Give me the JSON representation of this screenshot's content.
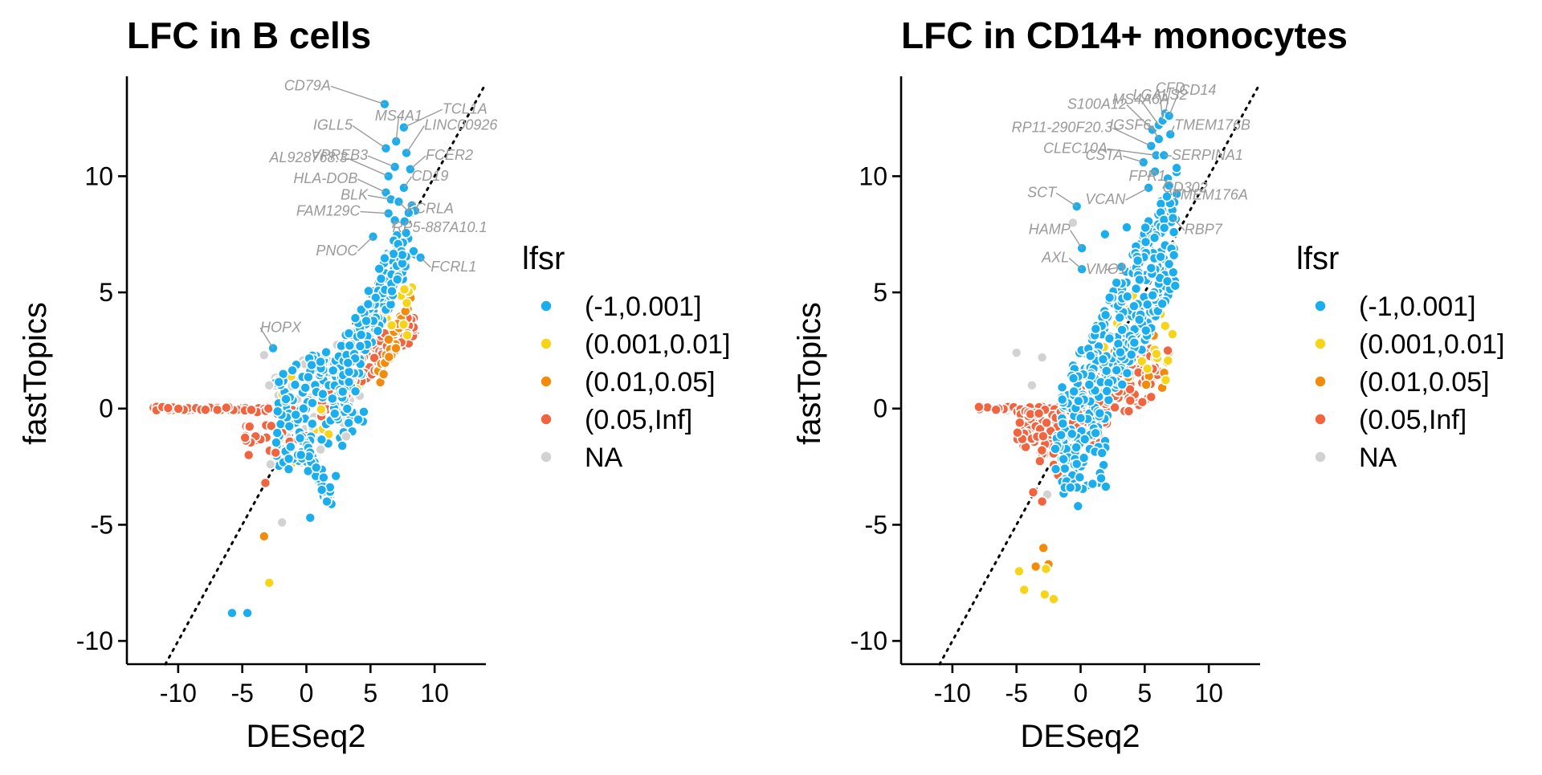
{
  "colors": {
    "(-1,0.001]": "#1aaeee",
    "(0.001,0.01]": "#f8d418",
    "(0.01,0.05]": "#f28b0c",
    "(0.05,Inf]": "#f06440",
    "NA": "#d2d2d2"
  },
  "legend": {
    "title": "lfsr",
    "entries": [
      "(-1,0.001]",
      "(0.001,0.01]",
      "(0.01,0.05]",
      "(0.05,Inf]",
      "NA"
    ]
  },
  "chart_data": [
    {
      "type": "scatter",
      "title": "LFC in B cells",
      "xlabel": "DESeq2",
      "ylabel": "fastTopics",
      "xlim": [
        -14,
        14
      ],
      "ylim": [
        -11,
        14.3
      ],
      "xticks": [
        -10,
        -5,
        0,
        5,
        10
      ],
      "xtick_labels": [
        "-10",
        "-5",
        "0",
        "5",
        "10"
      ],
      "yticks": [
        -10,
        -5,
        0,
        5,
        10
      ],
      "ytick_labels": [
        "-10",
        "-5",
        "0",
        "5",
        "10"
      ],
      "reference_line": "y = x",
      "grid": false,
      "legend_position": "right",
      "labeled_points": [
        {
          "gene": "CD79A",
          "x": 6.1,
          "y": 13.1,
          "lfsr": "(-1,0.001]"
        },
        {
          "gene": "TCL1A",
          "x": 7.6,
          "y": 12.1,
          "lfsr": "(-1,0.001]"
        },
        {
          "gene": "IGLL5",
          "x": 6.2,
          "y": 11.2,
          "lfsr": "(-1,0.001]"
        },
        {
          "gene": "MS4A1",
          "x": 7.0,
          "y": 11.5,
          "lfsr": "(-1,0.001]"
        },
        {
          "gene": "LINC00926",
          "x": 7.8,
          "y": 11.0,
          "lfsr": "(-1,0.001]"
        },
        {
          "gene": "AL928768.3",
          "x": 6.4,
          "y": 10.0,
          "lfsr": "(-1,0.001]"
        },
        {
          "gene": "VPREB3",
          "x": 6.9,
          "y": 10.4,
          "lfsr": "(-1,0.001]"
        },
        {
          "gene": "FCER2",
          "x": 8.1,
          "y": 10.3,
          "lfsr": "(-1,0.001]"
        },
        {
          "gene": "HLA-DOB",
          "x": 6.2,
          "y": 9.3,
          "lfsr": "(-1,0.001]"
        },
        {
          "gene": "BLK",
          "x": 6.6,
          "y": 9.0,
          "lfsr": "(-1,0.001]"
        },
        {
          "gene": "CD19",
          "x": 7.6,
          "y": 9.5,
          "lfsr": "(-1,0.001]"
        },
        {
          "gene": "FCRLA",
          "x": 7.2,
          "y": 8.9,
          "lfsr": "(-1,0.001]"
        },
        {
          "gene": "FAM129C",
          "x": 6.4,
          "y": 8.4,
          "lfsr": "(-1,0.001]"
        },
        {
          "gene": "RP5-887A10.1",
          "x": 6.9,
          "y": 8.1,
          "lfsr": "(-1,0.001]"
        },
        {
          "gene": "PNOC",
          "x": 5.2,
          "y": 7.4,
          "lfsr": "(-1,0.001]"
        },
        {
          "gene": "FCRL1",
          "x": 8.9,
          "y": 6.5,
          "lfsr": "(-1,0.001]"
        },
        {
          "gene": "HOPX",
          "x": -2.6,
          "y": 2.6,
          "lfsr": "(-1,0.001]"
        }
      ],
      "points": [
        {
          "x": -5.8,
          "y": -8.8,
          "lfsr": "(-1,0.001]"
        },
        {
          "x": -4.6,
          "y": -8.8,
          "lfsr": "(-1,0.001]"
        },
        {
          "x": -3.3,
          "y": -5.5,
          "lfsr": "(0.01,0.05]"
        },
        {
          "x": -2.9,
          "y": -7.5,
          "lfsr": "(0.001,0.01]"
        },
        {
          "x": -1.9,
          "y": -4.9,
          "lfsr": "NA"
        },
        {
          "x": 0.3,
          "y": -4.7,
          "lfsr": "(-1,0.001]"
        },
        {
          "x": -3.3,
          "y": 2.3,
          "lfsr": "NA"
        },
        {
          "x": -3.2,
          "y": -3.2,
          "lfsr": "(0.05,Inf]"
        },
        {
          "x": -2.4,
          "y": -1.9,
          "lfsr": "(0.05,Inf]"
        },
        {
          "x": -2.8,
          "y": -2.4,
          "lfsr": "NA"
        },
        {
          "x": -2.9,
          "y": 1.0,
          "lfsr": "NA"
        },
        {
          "x": -4.5,
          "y": -2.0,
          "lfsr": "(0.05,Inf]"
        },
        {
          "x": 1.6,
          "y": -4.0,
          "lfsr": "(-1,0.001]"
        },
        {
          "x": 1.2,
          "y": -3.5,
          "lfsr": "(-1,0.001]"
        },
        {
          "x": 2.3,
          "y": -2.9,
          "lfsr": "(-1,0.001]"
        },
        {
          "x": 2.8,
          "y": -1.6,
          "lfsr": "(-1,0.001]"
        },
        {
          "x": 3.1,
          "y": -1.2,
          "lfsr": "NA"
        }
      ]
    },
    {
      "type": "scatter",
      "title": "LFC in CD14+ monocytes",
      "xlabel": "DESeq2",
      "ylabel": "fastTopics",
      "xlim": [
        -14,
        14
      ],
      "ylim": [
        -11,
        14.3
      ],
      "xticks": [
        -10,
        -5,
        0,
        5,
        10
      ],
      "xtick_labels": [
        "-10",
        "-5",
        "0",
        "5",
        "10"
      ],
      "yticks": [
        -10,
        -5,
        0,
        5,
        10
      ],
      "ytick_labels": [
        "-10",
        "-5",
        "0",
        "5",
        "10"
      ],
      "reference_line": "y = x",
      "grid": false,
      "legend_position": "right",
      "labeled_points": [
        {
          "gene": "S100A12",
          "x": 5.6,
          "y": 12.0,
          "lfsr": "(-1,0.001]"
        },
        {
          "gene": "MS4A6A",
          "x": 6.1,
          "y": 12.2,
          "lfsr": "(-1,0.001]"
        },
        {
          "gene": "LGALS2",
          "x": 6.4,
          "y": 12.4,
          "lfsr": "(-1,0.001]"
        },
        {
          "gene": "CFD",
          "x": 6.6,
          "y": 12.7,
          "lfsr": "(-1,0.001]"
        },
        {
          "gene": "CD14",
          "x": 6.9,
          "y": 12.6,
          "lfsr": "(-1,0.001]"
        },
        {
          "gene": "RP11-290F20.3",
          "x": 5.5,
          "y": 11.3,
          "lfsr": "(-1,0.001]"
        },
        {
          "gene": "IGSF6",
          "x": 6.1,
          "y": 11.6,
          "lfsr": "(-1,0.001]"
        },
        {
          "gene": "TMEM176B",
          "x": 7.0,
          "y": 11.8,
          "lfsr": "(-1,0.001]"
        },
        {
          "gene": "CLEC10A",
          "x": 5.9,
          "y": 10.9,
          "lfsr": "(-1,0.001]"
        },
        {
          "gene": "CSTA",
          "x": 4.9,
          "y": 10.6,
          "lfsr": "(-1,0.001]"
        },
        {
          "gene": "FPR1",
          "x": 5.8,
          "y": 10.2,
          "lfsr": "(-1,0.001]"
        },
        {
          "gene": "SERPINA1",
          "x": 6.5,
          "y": 10.9,
          "lfsr": "(-1,0.001]"
        },
        {
          "gene": "CD302",
          "x": 6.8,
          "y": 9.9,
          "lfsr": "(-1,0.001]"
        },
        {
          "gene": "TMEM176A",
          "x": 6.9,
          "y": 9.6,
          "lfsr": "(-1,0.001]"
        },
        {
          "gene": "SCT",
          "x": -0.3,
          "y": 8.7,
          "lfsr": "(-1,0.001]"
        },
        {
          "gene": "VCAN",
          "x": 5.3,
          "y": 9.5,
          "lfsr": "(-1,0.001]"
        },
        {
          "gene": "RBP7",
          "x": 7.2,
          "y": 8.2,
          "lfsr": "(-1,0.001]"
        },
        {
          "gene": "HAMP",
          "x": 0.1,
          "y": 6.9,
          "lfsr": "(-1,0.001]"
        },
        {
          "gene": "AXL",
          "x": 0.1,
          "y": 6.0,
          "lfsr": "(-1,0.001]"
        },
        {
          "gene": "VMO1",
          "x": 3.2,
          "y": 6.1,
          "lfsr": "(-1,0.001]"
        }
      ],
      "points": [
        {
          "x": -4.8,
          "y": -7.0,
          "lfsr": "(0.001,0.01]"
        },
        {
          "x": -4.4,
          "y": -7.8,
          "lfsr": "(0.001,0.01]"
        },
        {
          "x": -3.5,
          "y": -6.8,
          "lfsr": "(0.01,0.05]"
        },
        {
          "x": -2.9,
          "y": -6.0,
          "lfsr": "(0.01,0.05]"
        },
        {
          "x": -2.5,
          "y": -6.7,
          "lfsr": "(0.01,0.05]"
        },
        {
          "x": -2.7,
          "y": -6.9,
          "lfsr": "(0.001,0.01]"
        },
        {
          "x": -2.8,
          "y": -8.0,
          "lfsr": "(0.001,0.01]"
        },
        {
          "x": -2.1,
          "y": -8.2,
          "lfsr": "(0.001,0.01]"
        },
        {
          "x": -5.0,
          "y": 2.4,
          "lfsr": "NA"
        },
        {
          "x": -3.0,
          "y": 2.2,
          "lfsr": "NA"
        },
        {
          "x": -3.8,
          "y": 1.0,
          "lfsr": "NA"
        },
        {
          "x": -2.6,
          "y": -3.7,
          "lfsr": "NA"
        },
        {
          "x": -3.0,
          "y": -4.0,
          "lfsr": "(0.05,Inf]"
        },
        {
          "x": -3.7,
          "y": -3.6,
          "lfsr": "(0.05,Inf]"
        },
        {
          "x": -0.2,
          "y": -4.2,
          "lfsr": "(-1,0.001]"
        },
        {
          "x": -0.8,
          "y": -3.4,
          "lfsr": "(-1,0.001]"
        },
        {
          "x": 1.6,
          "y": -3.0,
          "lfsr": "(-1,0.001]"
        },
        {
          "x": 5.5,
          "y": 0.5,
          "lfsr": "(0.05,Inf]"
        },
        {
          "x": 6.8,
          "y": 2.5,
          "lfsr": "(0.05,Inf]"
        },
        {
          "x": 1.9,
          "y": 7.5,
          "lfsr": "(-1,0.001]"
        },
        {
          "x": 3.6,
          "y": 7.8,
          "lfsr": "(-1,0.001]"
        },
        {
          "x": -0.6,
          "y": 8.0,
          "lfsr": "NA"
        }
      ]
    }
  ]
}
